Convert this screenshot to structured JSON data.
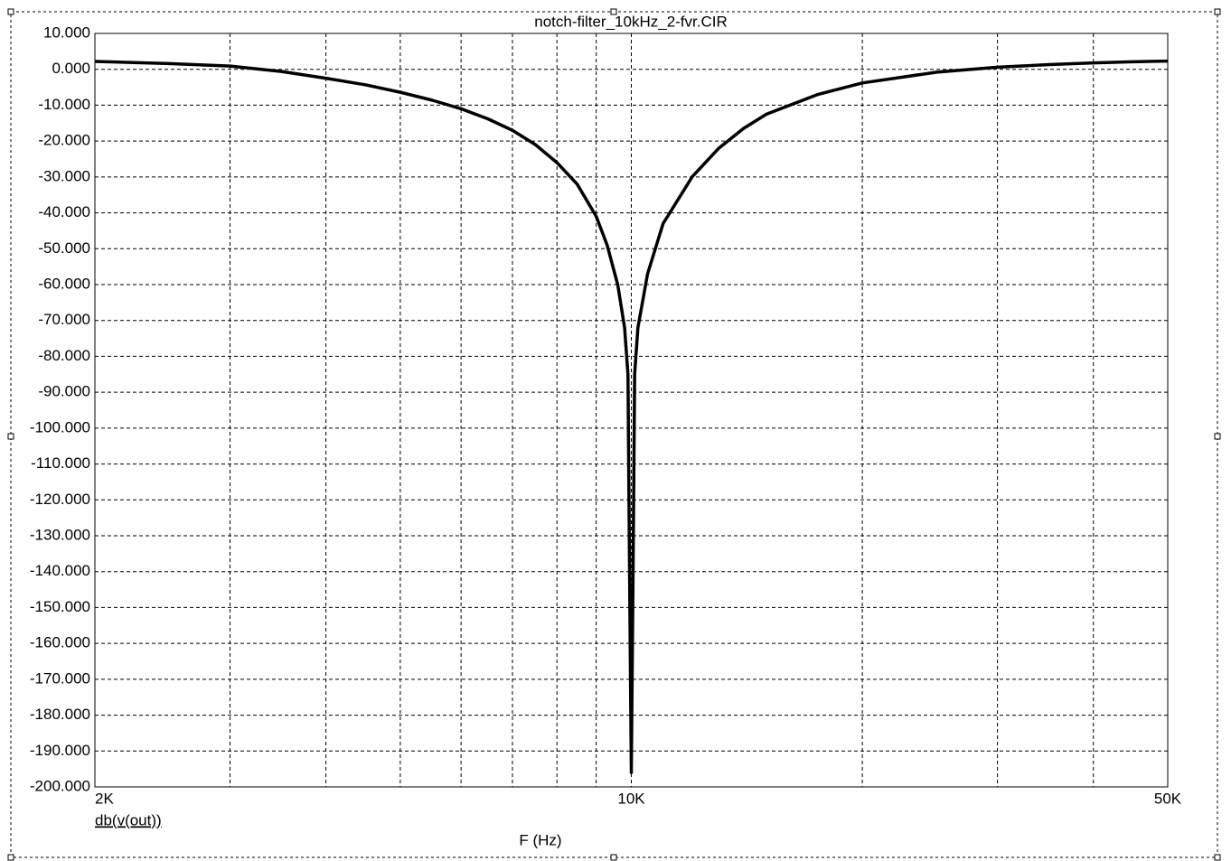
{
  "chart_data": {
    "type": "line",
    "title": "notch-filter_10kHz_2-fvr.CIR",
    "xlabel": "F (Hz)",
    "xscale": "log",
    "grid": true,
    "xlim": [
      2000,
      50000
    ],
    "xticks": [
      {
        "value": 2000,
        "label": "2K"
      },
      {
        "value": 10000,
        "label": "10K"
      },
      {
        "value": 50000,
        "label": "50K"
      }
    ],
    "xgrid": [
      3000,
      4000,
      5000,
      6000,
      7000,
      8000,
      9000,
      20000,
      30000,
      40000
    ],
    "ylim": [
      -200,
      10
    ],
    "yticks": [
      {
        "value": 10,
        "label": "10.000"
      },
      {
        "value": 0,
        "label": "0.000"
      },
      {
        "value": -10,
        "label": "-10.000"
      },
      {
        "value": -20,
        "label": "-20.000"
      },
      {
        "value": -30,
        "label": "-30.000"
      },
      {
        "value": -40,
        "label": "-40.000"
      },
      {
        "value": -50,
        "label": "-50.000"
      },
      {
        "value": -60,
        "label": "-60.000"
      },
      {
        "value": -70,
        "label": "-70.000"
      },
      {
        "value": -80,
        "label": "-80.000"
      },
      {
        "value": -90,
        "label": "-90.000"
      },
      {
        "value": -100,
        "label": "-100.000"
      },
      {
        "value": -110,
        "label": "-110.000"
      },
      {
        "value": -120,
        "label": "-120.000"
      },
      {
        "value": -130,
        "label": "-130.000"
      },
      {
        "value": -140,
        "label": "-140.000"
      },
      {
        "value": -150,
        "label": "-150.000"
      },
      {
        "value": -160,
        "label": "-160.000"
      },
      {
        "value": -170,
        "label": "-170.000"
      },
      {
        "value": -180,
        "label": "-180.000"
      },
      {
        "value": -190,
        "label": "-190.000"
      },
      {
        "value": -200,
        "label": "-200.000"
      }
    ],
    "x": [
      2000,
      2500,
      3000,
      3500,
      4000,
      4500,
      5000,
      5500,
      6000,
      6500,
      7000,
      7500,
      8000,
      8500,
      9000,
      9300,
      9600,
      9800,
      9900,
      9950,
      10000,
      10050,
      10100,
      10200,
      10500,
      11000,
      12000,
      13000,
      14000,
      15000,
      17500,
      20000,
      25000,
      30000,
      35000,
      40000,
      45000,
      50000
    ],
    "series": [
      {
        "name": "db(v(out))",
        "color": "#000000",
        "values": [
          2.2,
          1.6,
          0.9,
          -0.6,
          -2.5,
          -4.3,
          -6.4,
          -8.6,
          -11,
          -13.8,
          -17,
          -21,
          -26,
          -32,
          -41,
          -49,
          -60,
          -72,
          -85,
          -143,
          -196,
          -143,
          -85,
          -72,
          -57,
          -43,
          -30,
          -22,
          -16.5,
          -12.5,
          -7,
          -3.8,
          -0.8,
          0.6,
          1.3,
          1.8,
          2.1,
          2.3
        ]
      }
    ]
  }
}
